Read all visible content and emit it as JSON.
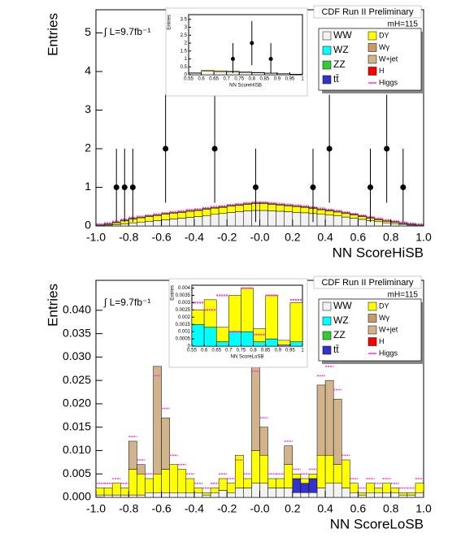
{
  "chart_data": [
    {
      "type": "stacked_histogram",
      "title": "CDF Run II Preliminary",
      "lumi": "∫ L=9.7fb⁻¹",
      "mass": "mH=115",
      "xlabel": "NN ScoreHiSB",
      "ylabel": "Entries",
      "xlim": [
        -1,
        1
      ],
      "ylim": [
        0,
        5.6
      ],
      "xticks": [
        {
          "value": -1,
          "label": "-1.0"
        },
        {
          "value": -0.8,
          "label": "-0.8"
        },
        {
          "value": -0.6,
          "label": "-0.6"
        },
        {
          "value": -0.4,
          "label": "-0.4"
        },
        {
          "value": -0.2,
          "label": "-0.2"
        },
        {
          "value": 0,
          "label": "-0.0"
        },
        {
          "value": 0.2,
          "label": "0.2"
        },
        {
          "value": 0.4,
          "label": "0.4"
        },
        {
          "value": 0.6,
          "label": "0.6"
        },
        {
          "value": 0.8,
          "label": "0.8"
        },
        {
          "value": 1,
          "label": "1.0"
        }
      ],
      "yticks": [
        0,
        1,
        2,
        3,
        4,
        5
      ],
      "bins": [
        -1,
        -0.95,
        -0.9,
        -0.85,
        -0.8,
        -0.75,
        -0.7,
        -0.65,
        -0.6,
        -0.55,
        -0.5,
        -0.45,
        -0.4,
        -0.35,
        -0.3,
        -0.25,
        -0.2,
        -0.15,
        -0.1,
        -0.05,
        0,
        0.05,
        0.1,
        0.15,
        0.2,
        0.25,
        0.3,
        0.35,
        0.4,
        0.45,
        0.5,
        0.55,
        0.6,
        0.65,
        0.7,
        0.75,
        0.8,
        0.85,
        0.9,
        0.95,
        1
      ],
      "series": [
        {
          "name": "WW",
          "color": "#f2f2f2",
          "values": [
            0.01,
            0.02,
            0.03,
            0.05,
            0.08,
            0.1,
            0.12,
            0.14,
            0.16,
            0.18,
            0.2,
            0.22,
            0.24,
            0.27,
            0.3,
            0.32,
            0.35,
            0.37,
            0.39,
            0.4,
            0.4,
            0.39,
            0.38,
            0.37,
            0.35,
            0.34,
            0.32,
            0.3,
            0.28,
            0.26,
            0.23,
            0.2,
            0.17,
            0.14,
            0.11,
            0.08,
            0.06,
            0.04,
            0.02,
            0.01
          ]
        },
        {
          "name": "WZ",
          "color": "#00ffff"
        },
        {
          "name": "ZZ",
          "color": "#33cc33"
        },
        {
          "name": "tt̄",
          "color": "#3333cc"
        },
        {
          "name": "DY",
          "color": "#ffff00",
          "values": [
            0,
            0.02,
            0.05,
            0.08,
            0.1,
            0.11,
            0.12,
            0.13,
            0.14,
            0.15,
            0.15,
            0.16,
            0.16,
            0.16,
            0.16,
            0.16,
            0.16,
            0.16,
            0.17,
            0.18,
            0.18,
            0.17,
            0.16,
            0.15,
            0.15,
            0.14,
            0.13,
            0.12,
            0.11,
            0.1,
            0.09,
            0.08,
            0.07,
            0.06,
            0.05,
            0.04,
            0.03,
            0.02,
            0.01,
            0
          ]
        },
        {
          "name": "Wγ",
          "color": "#c89a6a"
        },
        {
          "name": "W+jet",
          "color": "#d2b48c",
          "values": [
            0.02,
            0.02,
            0.02,
            0.02,
            0.02,
            0.02,
            0.02,
            0.02,
            0.02,
            0.02,
            0.02,
            0.02,
            0.02,
            0.02,
            0.02,
            0.02,
            0.02,
            0.02,
            0.02,
            0.02,
            0.02,
            0.02,
            0.02,
            0.02,
            0.02,
            0.02,
            0.02,
            0.02,
            0.02,
            0.02,
            0.02,
            0.02,
            0.02,
            0.02,
            0.02,
            0.02,
            0.02,
            0.02,
            0.02,
            0.02
          ]
        },
        {
          "name": "H",
          "color": "#ff0000"
        },
        {
          "name": "Higgs",
          "color": "#ff33cc",
          "style": "line",
          "values": [
            0.05,
            0.08,
            0.12,
            0.17,
            0.22,
            0.25,
            0.28,
            0.31,
            0.34,
            0.37,
            0.39,
            0.42,
            0.44,
            0.47,
            0.5,
            0.52,
            0.55,
            0.57,
            0.6,
            0.62,
            0.62,
            0.6,
            0.58,
            0.56,
            0.54,
            0.52,
            0.49,
            0.46,
            0.43,
            0.4,
            0.36,
            0.32,
            0.28,
            0.24,
            0.2,
            0.16,
            0.13,
            0.1,
            0.07,
            0.05
          ]
        }
      ],
      "points": {
        "x": [
          -0.875,
          -0.825,
          -0.775,
          -0.575,
          -0.275,
          -0.025,
          0.325,
          0.425,
          0.675,
          0.775,
          0.875
        ],
        "y": [
          1,
          1,
          1,
          2,
          2,
          1,
          1,
          2,
          1,
          2,
          1
        ],
        "err_low": [
          0.9,
          0.9,
          0.9,
          1.4,
          1.4,
          0.9,
          0.9,
          1.4,
          0.9,
          1.4,
          0.9
        ],
        "err_high": [
          1,
          1,
          1,
          1.4,
          1.4,
          1,
          1,
          1.4,
          1,
          1.4,
          1
        ]
      },
      "inset": {
        "xlabel": "NN ScoreHiSB",
        "ylabel": "Entries",
        "xlim": [
          0.55,
          1
        ],
        "ylim": [
          0,
          3.8
        ],
        "xticks": [
          0.55,
          0.6,
          0.65,
          0.7,
          0.75,
          0.8,
          0.85,
          0.9,
          0.95,
          1
        ],
        "yticks": [
          0,
          0.5,
          1,
          1.5,
          2,
          2.5,
          3,
          3.5
        ],
        "bins": [
          0.55,
          0.6,
          0.65,
          0.7,
          0.75,
          0.8,
          0.85,
          0.9,
          0.95,
          1
        ],
        "series": [
          {
            "color": "#f2f2f2",
            "values": [
              0.1,
              0.22,
              0.2,
              0.18,
              0.15,
              0.12,
              0.09,
              0.06,
              0.03
            ]
          },
          {
            "color": "#ffff00",
            "values": [
              0.02,
              0.05,
              0.05,
              0.04,
              0.03,
              0.03,
              0.02,
              0.01,
              0.01
            ]
          }
        ],
        "points": {
          "x": [
            0.725,
            0.8,
            0.875
          ],
          "y": [
            1,
            2,
            1
          ],
          "err_low": [
            0.9,
            1.4,
            0.9
          ],
          "err_high": [
            1,
            1.4,
            1
          ]
        }
      }
    },
    {
      "type": "stacked_histogram",
      "title": "CDF Run II Preliminary",
      "lumi": "∫ L=9.7fb⁻¹",
      "mass": "mH=115",
      "xlabel": "NN ScoreLoSB",
      "ylabel": "Entries",
      "xlim": [
        -1,
        1
      ],
      "ylim": [
        0,
        0.0464
      ],
      "xticks": [
        {
          "value": -1,
          "label": "-1.0"
        },
        {
          "value": -0.8,
          "label": "-0.8"
        },
        {
          "value": -0.6,
          "label": "-0.6"
        },
        {
          "value": -0.4,
          "label": "-0.4"
        },
        {
          "value": -0.2,
          "label": "-0.2"
        },
        {
          "value": 0,
          "label": "-0.0"
        },
        {
          "value": 0.2,
          "label": "0.2"
        },
        {
          "value": 0.4,
          "label": "0.4"
        },
        {
          "value": 0.6,
          "label": "0.6"
        },
        {
          "value": 0.8,
          "label": "0.8"
        },
        {
          "value": 1,
          "label": "1.0"
        }
      ],
      "yticks": [
        {
          "value": 0,
          "label": "0.000"
        },
        0.005,
        {
          "value": 0.01,
          "label": "0.010"
        },
        0.015,
        {
          "value": 0.02,
          "label": "0.020"
        },
        0.025,
        {
          "value": 0.03,
          "label": "0.030"
        },
        0.035,
        {
          "value": 0.04,
          "label": "0.040"
        }
      ],
      "bins": [
        -1,
        -0.95,
        -0.9,
        -0.85,
        -0.8,
        -0.75,
        -0.7,
        -0.65,
        -0.6,
        -0.55,
        -0.5,
        -0.45,
        -0.4,
        -0.35,
        -0.3,
        -0.25,
        -0.2,
        -0.15,
        -0.1,
        -0.05,
        0,
        0.05,
        0.1,
        0.15,
        0.2,
        0.25,
        0.3,
        0.35,
        0.4,
        0.45,
        0.5,
        0.55,
        0.6,
        0.65,
        0.7,
        0.75,
        0.8,
        0.85,
        0.9,
        0.95,
        1
      ],
      "series": [
        {
          "name": "WW",
          "color": "#f2f2f2",
          "values": [
            0.0005,
            0.0005,
            0.0005,
            0.0005,
            0.0005,
            0.0005,
            0.001,
            0.001,
            0.001,
            0.001,
            0.001,
            0.001,
            0.001,
            0.0005,
            0.001,
            0.0015,
            0.001,
            0.002,
            0.002,
            0.003,
            0.003,
            0.002,
            0.002,
            0.002,
            0.001,
            0.001,
            0.001,
            0.002,
            0.003,
            0.003,
            0.002,
            0.001,
            0.0005,
            0.001,
            0.001,
            0.001,
            0.001,
            0.0005,
            0.0005,
            0.001
          ]
        },
        {
          "name": "WZ",
          "color": "#00ffff"
        },
        {
          "name": "ZZ",
          "color": "#33cc33"
        },
        {
          "name": "tt̄",
          "color": "#3333cc",
          "values": [
            0,
            0,
            0,
            0,
            0,
            0,
            0,
            0,
            0,
            0,
            0,
            0,
            0,
            0,
            0,
            0,
            0,
            0,
            0,
            0,
            0,
            0,
            0,
            0,
            0.003,
            0.002,
            0.003,
            0,
            0,
            0,
            0,
            0,
            0,
            0,
            0,
            0,
            0,
            0,
            0,
            0
          ]
        },
        {
          "name": "DY",
          "color": "#ffff00",
          "values": [
            0.0015,
            0.0015,
            0.0025,
            0.0015,
            0.0055,
            0.0045,
            0.003,
            0.004,
            0.005,
            0.006,
            0.005,
            0.003,
            0.001,
            0.0005,
            0.001,
            0.0025,
            0.002,
            0.007,
            0.002,
            0.007,
            0.006,
            0.002,
            0.002,
            0.005,
            0.001,
            0.001,
            0.001,
            0.007,
            0.006,
            0.004,
            0.006,
            0.002,
            0.0005,
            0.002,
            0.001,
            0.002,
            0.001,
            0.0005,
            0.0005,
            0.002
          ]
        },
        {
          "name": "Wγ",
          "color": "#c89a6a"
        },
        {
          "name": "W+jet",
          "color": "#d2b48c",
          "values": [
            0,
            0,
            0,
            0,
            0.006,
            0.002,
            0,
            0.023,
            0.011,
            0,
            0,
            0,
            0,
            0,
            0,
            0,
            0,
            0,
            0,
            0.018,
            0.006,
            0,
            0,
            0.004,
            0,
            0,
            0,
            0.015,
            0.016,
            0.014,
            0,
            0,
            0,
            0,
            0,
            0,
            0,
            0,
            0,
            0
          ]
        },
        {
          "name": "H",
          "color": "#ff0000"
        },
        {
          "name": "Higgs",
          "color": "#ff33cc",
          "style": "line",
          "values": [
            0.003,
            0.003,
            0.004,
            0.003,
            0.013,
            0.008,
            0.005,
            0.026,
            0.019,
            0.009,
            0.007,
            0.005,
            0.003,
            0.002,
            0.003,
            0.005,
            0.004,
            0.008,
            0.005,
            0.027,
            0.017,
            0.005,
            0.005,
            0.012,
            0.006,
            0.005,
            0.006,
            0.026,
            0.028,
            0.023,
            0.009,
            0.004,
            0.002,
            0.004,
            0.003,
            0.004,
            0.003,
            0.002,
            0.002,
            0.004
          ]
        }
      ],
      "inset": {
        "xlabel": "NN ScoreLoSB",
        "ylabel": "Entries",
        "xlim": [
          0.55,
          1
        ],
        "ylim": [
          0,
          0.0042
        ],
        "xticks": [
          0.55,
          0.6,
          0.65,
          0.7,
          0.75,
          0.8,
          0.85,
          0.9,
          0.95,
          1
        ],
        "yticks": [
          0,
          0.0005,
          0.001,
          0.0015,
          0.002,
          0.0025,
          0.003,
          0.0035,
          0.004
        ],
        "bins": [
          0.55,
          0.6,
          0.65,
          0.7,
          0.75,
          0.8,
          0.85,
          0.9,
          0.95,
          1
        ],
        "series": [
          {
            "color": "#00ffff",
            "values": [
              0.0015,
              0.0013,
              0.0003,
              0.001,
              0.001,
              0.0003,
              0.0005,
              0.0001,
              0.0003
            ]
          },
          {
            "color": "#ffff00",
            "values": [
              0.001,
              0.0019,
              0.001,
              0.0025,
              0.003,
              0.0009,
              0.003,
              0.0003,
              0.0027
            ]
          },
          {
            "color": "#ff33cc",
            "style": "line",
            "values": [
              0.003,
              0.0025,
              0.0035,
              0.001,
              0.004,
              0.0008,
              0.0035,
              0,
              0.0032
            ]
          }
        ]
      }
    }
  ]
}
